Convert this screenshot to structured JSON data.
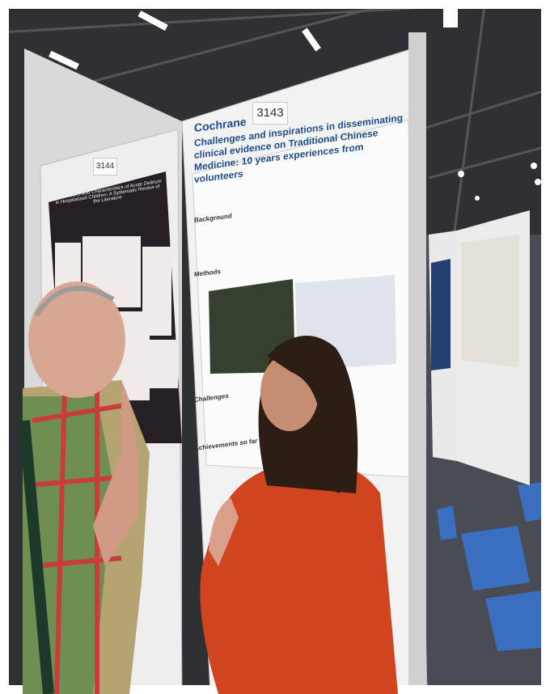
{
  "booths": [
    {
      "number": "3143"
    },
    {
      "number": "3144"
    }
  ],
  "poster": {
    "logo": "Cochrane",
    "title": "Challenges and inspirations in disseminating clinical evidence on Traditional Chinese Medicine: 10 years experiences from volunteers",
    "sections": [
      "Background",
      "Methods",
      "Challenges",
      "Achievements so far"
    ]
  },
  "left_poster": {
    "title": "Risk Factors and Characteristics of Acute Delirium in Hospitalized Children: A Systematic Review of the Literature"
  }
}
